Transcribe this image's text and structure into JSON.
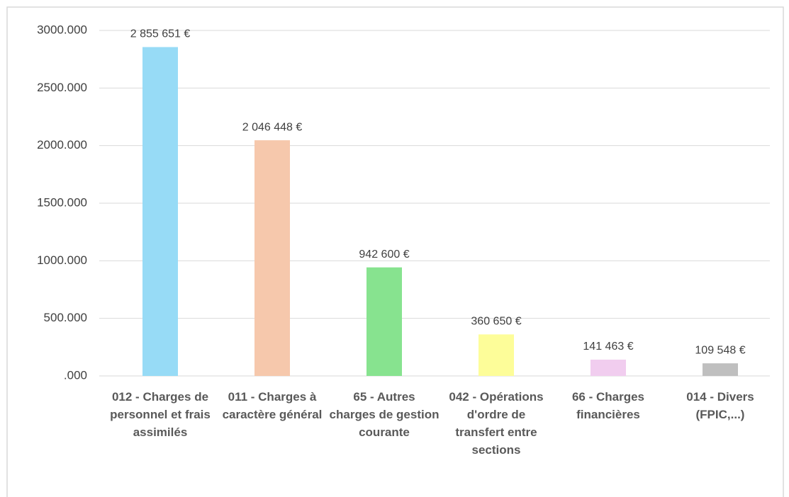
{
  "chart_data": {
    "type": "bar",
    "categories": [
      "012 - Charges de personnel et frais assimilés",
      "011 - Charges à caractère général",
      "65 - Autres charges de gestion courante",
      "042 - Opérations d'ordre de transfert entre sections",
      "66 - Charges financières",
      "014 - Divers (FPIC,...)"
    ],
    "values": [
      2855651,
      2046448,
      942600,
      360650,
      141463,
      109548
    ],
    "value_labels": [
      "2 855 651 €",
      "2 046 448 €",
      "942 600 €",
      "360 650 €",
      "141 463 €",
      "109 548 €"
    ],
    "colors": [
      "#97dbf6",
      "#f6c8ac",
      "#87e38f",
      "#fdfd99",
      "#f1cdef",
      "#bfbfbf"
    ],
    "ylim": [
      0,
      3000000
    ],
    "yticks": [
      {
        "value": 0,
        "label": ".000"
      },
      {
        "value": 500000,
        "label": "500.000"
      },
      {
        "value": 1000000,
        "label": "1000.000"
      },
      {
        "value": 1500000,
        "label": "1500.000"
      },
      {
        "value": 2000000,
        "label": "2000.000"
      },
      {
        "value": 2500000,
        "label": "2500.000"
      },
      {
        "value": 3000000,
        "label": "3000.000"
      }
    ],
    "grid": true
  }
}
